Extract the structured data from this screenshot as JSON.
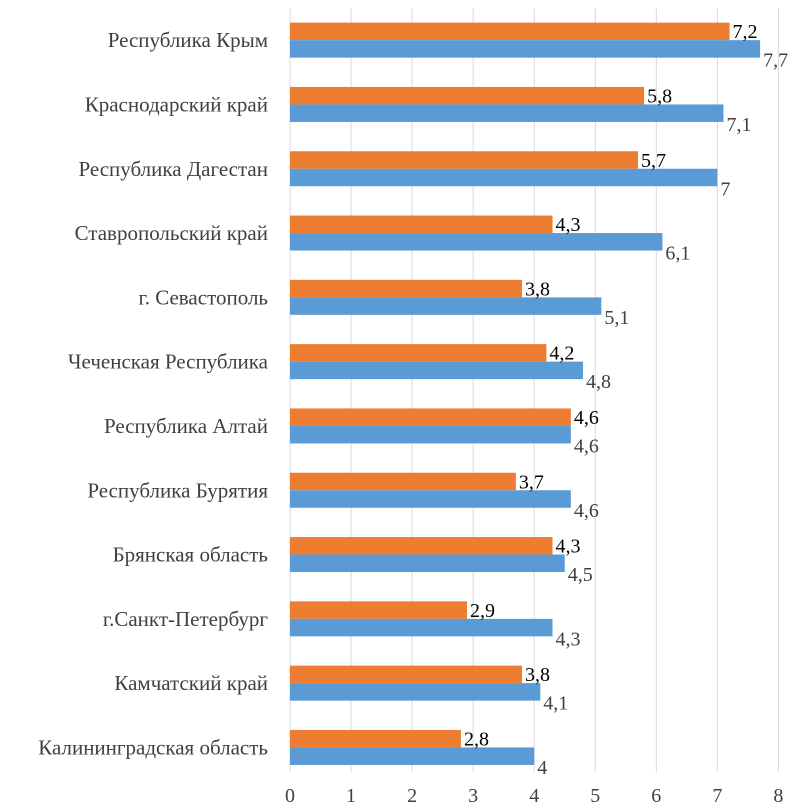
{
  "chart_data": {
    "type": "bar",
    "orientation": "horizontal",
    "categories": [
      "Республика Крым",
      "Краснодарский край",
      "Республика Дагестан",
      "Ставропольский край",
      "г. Севастополь",
      "Чеченская Республика",
      "Республика Алтай",
      "Республика Бурятия",
      "Брянская область",
      "г.Санкт-Петербург",
      "Камчатский край",
      "Калининградская область"
    ],
    "series": [
      {
        "color": "#ed7d31",
        "values": [
          7.2,
          5.8,
          5.7,
          4.3,
          3.8,
          4.2,
          4.6,
          3.7,
          4.3,
          2.9,
          3.8,
          2.8
        ],
        "labels": [
          "7,2",
          "5,8",
          "5,7",
          "4,3",
          "3,8",
          "4,2",
          "4,6",
          "3,7",
          "4,3",
          "2,9",
          "3,8",
          "2,8"
        ]
      },
      {
        "color": "#5b9bd5",
        "values": [
          7.7,
          7.1,
          7.0,
          6.1,
          5.1,
          4.8,
          4.6,
          4.6,
          4.5,
          4.3,
          4.1,
          4.0
        ],
        "labels": [
          "7,7",
          "7,1",
          "7",
          "6,1",
          "5,1",
          "4,8",
          "4,6",
          "4,6",
          "4,5",
          "4,3",
          "4,1",
          "4"
        ]
      }
    ],
    "xlim": [
      0,
      8
    ],
    "xticks": [
      "0",
      "1",
      "2",
      "3",
      "4",
      "5",
      "6",
      "7",
      "8"
    ],
    "grid": "vertical",
    "legend": "none"
  }
}
